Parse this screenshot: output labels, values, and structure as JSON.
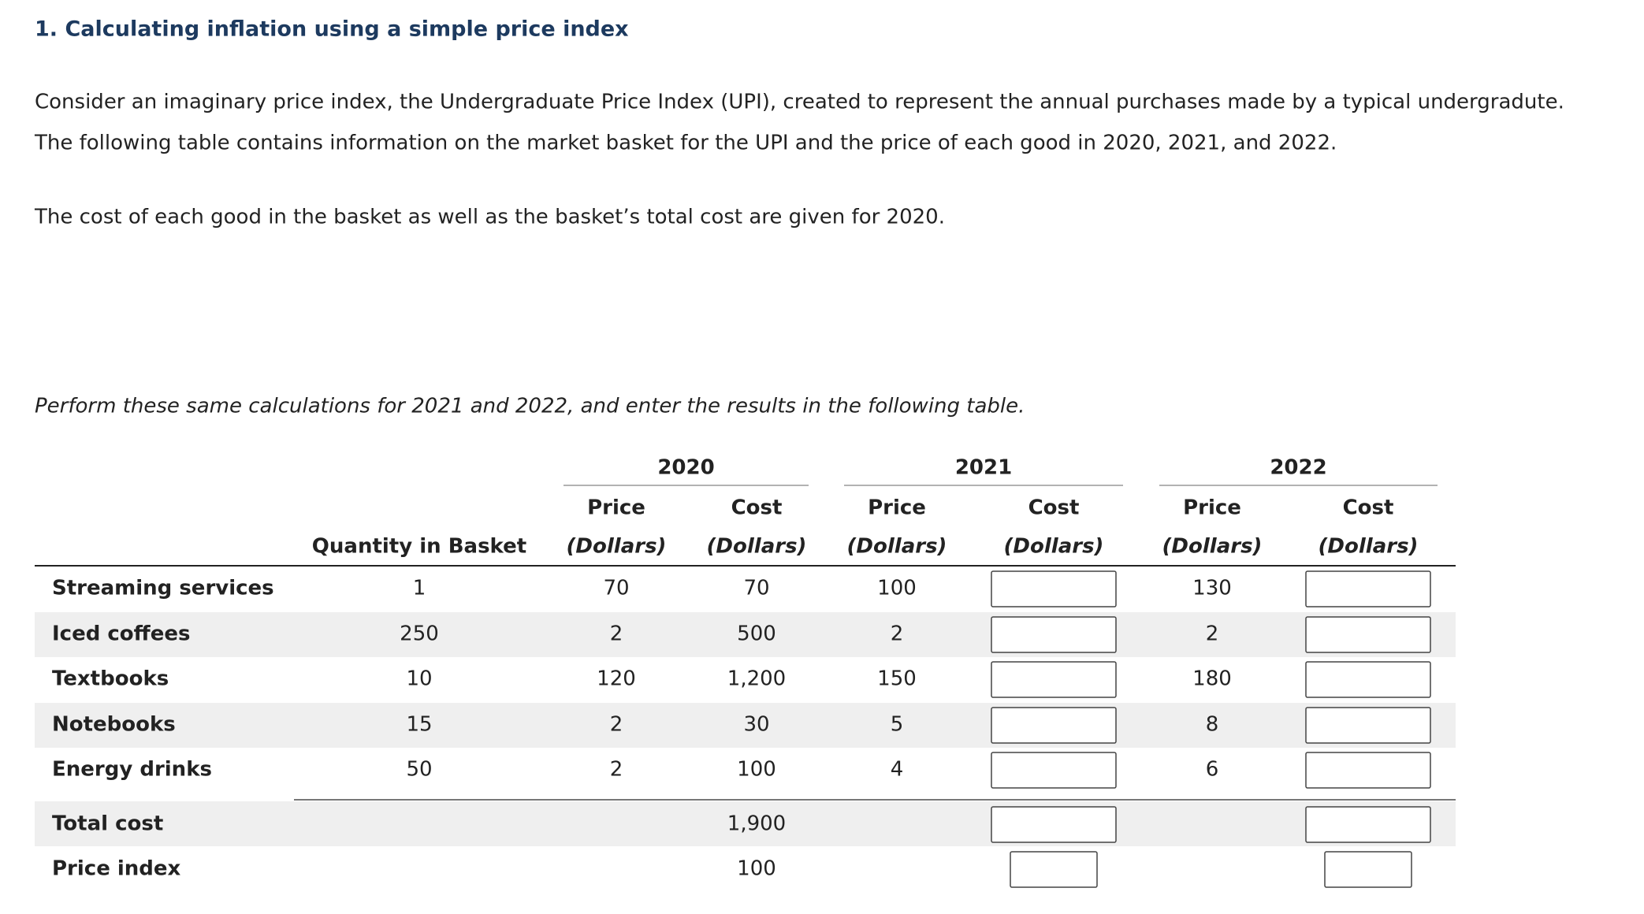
{
  "header": {
    "title": "1. Calculating inflation using a simple price index"
  },
  "paragraphs": [
    "Consider an imaginary price index, the Undergraduate Price Index (UPI), created to represent the annual purchases made by a typical undergradute.",
    "The following table contains information on the market basket for the UPI and the price of each good in 2020, 2021, and 2022.",
    "The cost of each good in the basket as well as the basket’s total cost are given for 2020."
  ],
  "instruction": "Perform these same calculations for 2021 and 2022, and enter the results in the following table.",
  "table": {
    "quantity_header": "Quantity in Basket",
    "year_groups": [
      {
        "year": "2020",
        "price": "Price",
        "price_unit": "(Dollars)",
        "cost": "Cost",
        "cost_unit": "(Dollars)"
      },
      {
        "year": "2021",
        "price": "Price",
        "price_unit": "(Dollars)",
        "cost": "Cost",
        "cost_unit": "(Dollars)"
      },
      {
        "year": "2022",
        "price": "Price",
        "price_unit": "(Dollars)",
        "cost": "Cost",
        "cost_unit": "(Dollars)"
      }
    ],
    "rows": [
      {
        "label": "Streaming services",
        "quantity": "1",
        "prices": [
          "70",
          "100",
          "130"
        ],
        "cost_2020": "70"
      },
      {
        "label": "Iced coffees",
        "quantity": "250",
        "prices": [
          "2",
          "2",
          "2"
        ],
        "cost_2020": "500"
      },
      {
        "label": "Textbooks",
        "quantity": "10",
        "prices": [
          "120",
          "150",
          "180"
        ],
        "cost_2020": "1,200"
      },
      {
        "label": "Notebooks",
        "quantity": "15",
        "prices": [
          "2",
          "5",
          "8"
        ],
        "cost_2020": "30"
      },
      {
        "label": "Energy drinks",
        "quantity": "50",
        "prices": [
          "2",
          "4",
          "6"
        ],
        "cost_2020": "100"
      }
    ],
    "summary_rows": [
      {
        "label": "Total cost",
        "cost_2020": "1,900"
      },
      {
        "label": "Price index",
        "cost_2020": "100"
      }
    ]
  }
}
